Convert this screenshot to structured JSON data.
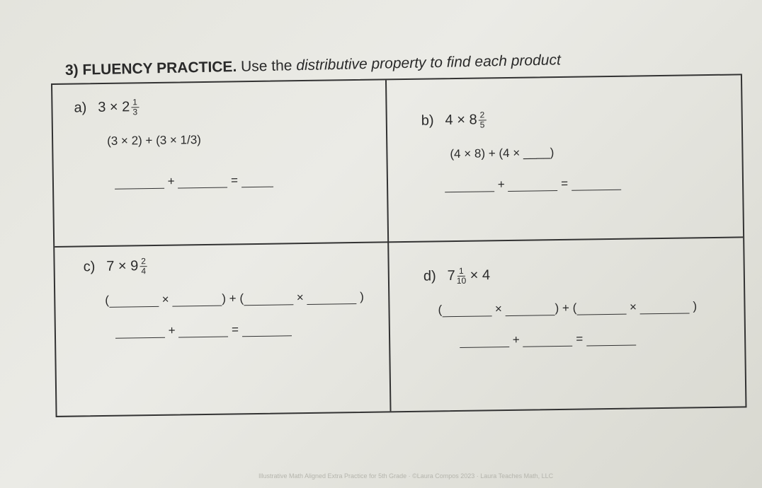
{
  "heading": {
    "number": "3)",
    "title": "FLUENCY PRACTICE.",
    "instruction_start": "Use the",
    "instruction_italic": "distributive property to find each product"
  },
  "problems": [
    {
      "label": "a)",
      "whole": "3",
      "op": "×",
      "mixed_whole": "2",
      "num": "1",
      "den": "3",
      "step1": "(3 × 2) + (3 × 1/3)",
      "step2_plus": "+",
      "step2_eq": "="
    },
    {
      "label": "b)",
      "whole": "4",
      "op": "×",
      "mixed_whole": "8",
      "num": "2",
      "den": "5",
      "step1": "(4 × 8) + (4 × ____)",
      "step2_plus": "+",
      "step2_eq": "="
    },
    {
      "label": "c)",
      "whole": "7",
      "op": "×",
      "mixed_whole": "9",
      "num": "2",
      "den": "4",
      "step1_a": "(",
      "step1_x": "×",
      "step1_b": ") + (",
      "step1_c": ")",
      "step2_plus": "+",
      "step2_eq": "="
    },
    {
      "label": "d)",
      "mixed_whole": "7",
      "num": "1",
      "den": "10",
      "op": "×",
      "whole": "4",
      "step1_a": "(",
      "step1_x": "×",
      "step1_b": ") + (",
      "step1_c": ")",
      "step2_plus": "+",
      "step2_eq": "="
    }
  ],
  "footer": "Illustrative Math Aligned Extra Practice for 5th Grade · ©Laura Compos 2023 · Laura Teaches Math, LLC"
}
